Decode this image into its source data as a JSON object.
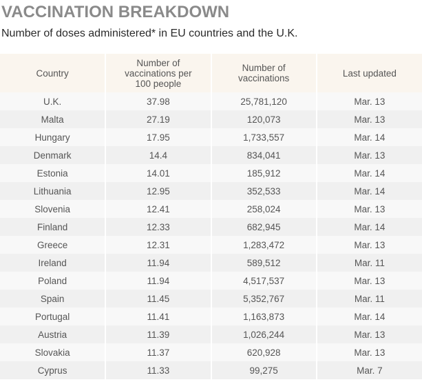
{
  "title": "VACCINATION BREAKDOWN",
  "subtitle": "Number of doses administered* in EU countries and the U.K.",
  "headers": [
    "Country",
    "Number of vaccinations per 100 people",
    "Number of vaccinations",
    "Last updated"
  ],
  "rows": [
    [
      "U.K.",
      "37.98",
      "25,781,120",
      "Mar. 13"
    ],
    [
      "Malta",
      "27.19",
      "120,073",
      "Mar. 13"
    ],
    [
      "Hungary",
      "17.95",
      "1,733,557",
      "Mar. 14"
    ],
    [
      "Denmark",
      "14.4",
      "834,041",
      "Mar. 13"
    ],
    [
      "Estonia",
      "14.01",
      "185,912",
      "Mar. 14"
    ],
    [
      "Lithuania",
      "12.95",
      "352,533",
      "Mar. 14"
    ],
    [
      "Slovenia",
      "12.41",
      "258,024",
      "Mar. 13"
    ],
    [
      "Finland",
      "12.33",
      "682,945",
      "Mar. 14"
    ],
    [
      "Greece",
      "12.31",
      "1,283,472",
      "Mar. 13"
    ],
    [
      "Ireland",
      "11.94",
      "589,512",
      "Mar. 11"
    ],
    [
      "Poland",
      "11.94",
      "4,517,537",
      "Mar. 13"
    ],
    [
      "Spain",
      "11.45",
      "5,352,767",
      "Mar. 11"
    ],
    [
      "Portugal",
      "11.41",
      "1,163,873",
      "Mar. 14"
    ],
    [
      "Austria",
      "11.39",
      "1,026,244",
      "Mar. 13"
    ],
    [
      "Slovakia",
      "11.37",
      "620,928",
      "Mar. 13"
    ],
    [
      "Cyprus",
      "11.33",
      "99,275",
      "Mar. 7"
    ]
  ]
}
